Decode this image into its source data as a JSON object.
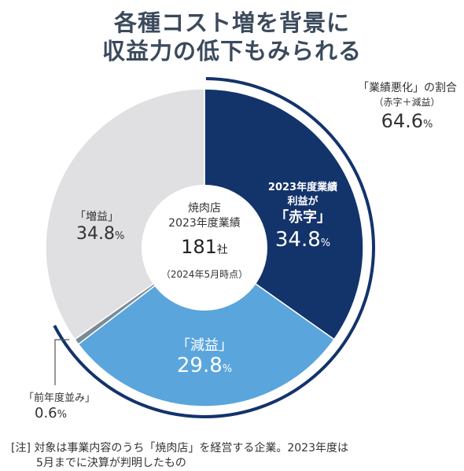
{
  "title": {
    "line1": "各種コスト増を背景に",
    "line2": "収益力の低下もみられる"
  },
  "chart_data": {
    "type": "pie",
    "variant": "donut",
    "slices": [
      {
        "label": "2023年度業績利益が「赤字」",
        "value": 34.8,
        "color": "#13336b"
      },
      {
        "label": "「減益」",
        "value": 29.8,
        "color": "#5aa5dc"
      },
      {
        "label": "「前年度並み」",
        "value": 0.6,
        "color": "#7a8a98"
      },
      {
        "label": "「増益」",
        "value": 34.8,
        "color": "#e0e0e2"
      }
    ],
    "center": {
      "line1": "焼肉店",
      "line2": "2023年度業績",
      "count": "181",
      "count_unit": "社",
      "date": "（2024年5月時点）"
    },
    "bracket": {
      "title": "「業績悪化」の割合",
      "subtitle": "（赤字＋減益）",
      "value": "64.6",
      "unit": "%"
    },
    "labels": {
      "akaji_line1": "2023年度業績",
      "akaji_line2": "利益が",
      "akaji_line3": "「赤字」",
      "akaji_value": "34.8",
      "genneki_name": "「減益」",
      "genneki_value": "29.8",
      "zoueki_name": "「増益」",
      "zoueki_value": "34.8",
      "heinen_name": "「前年度並み」",
      "heinen_value": "0.6",
      "unit": "%"
    }
  },
  "note": {
    "line1": "[注] 対象は事業内容のうち「焼肉店」を経営する企業。2023年度は",
    "line2": "5月までに決算が判明したもの"
  }
}
